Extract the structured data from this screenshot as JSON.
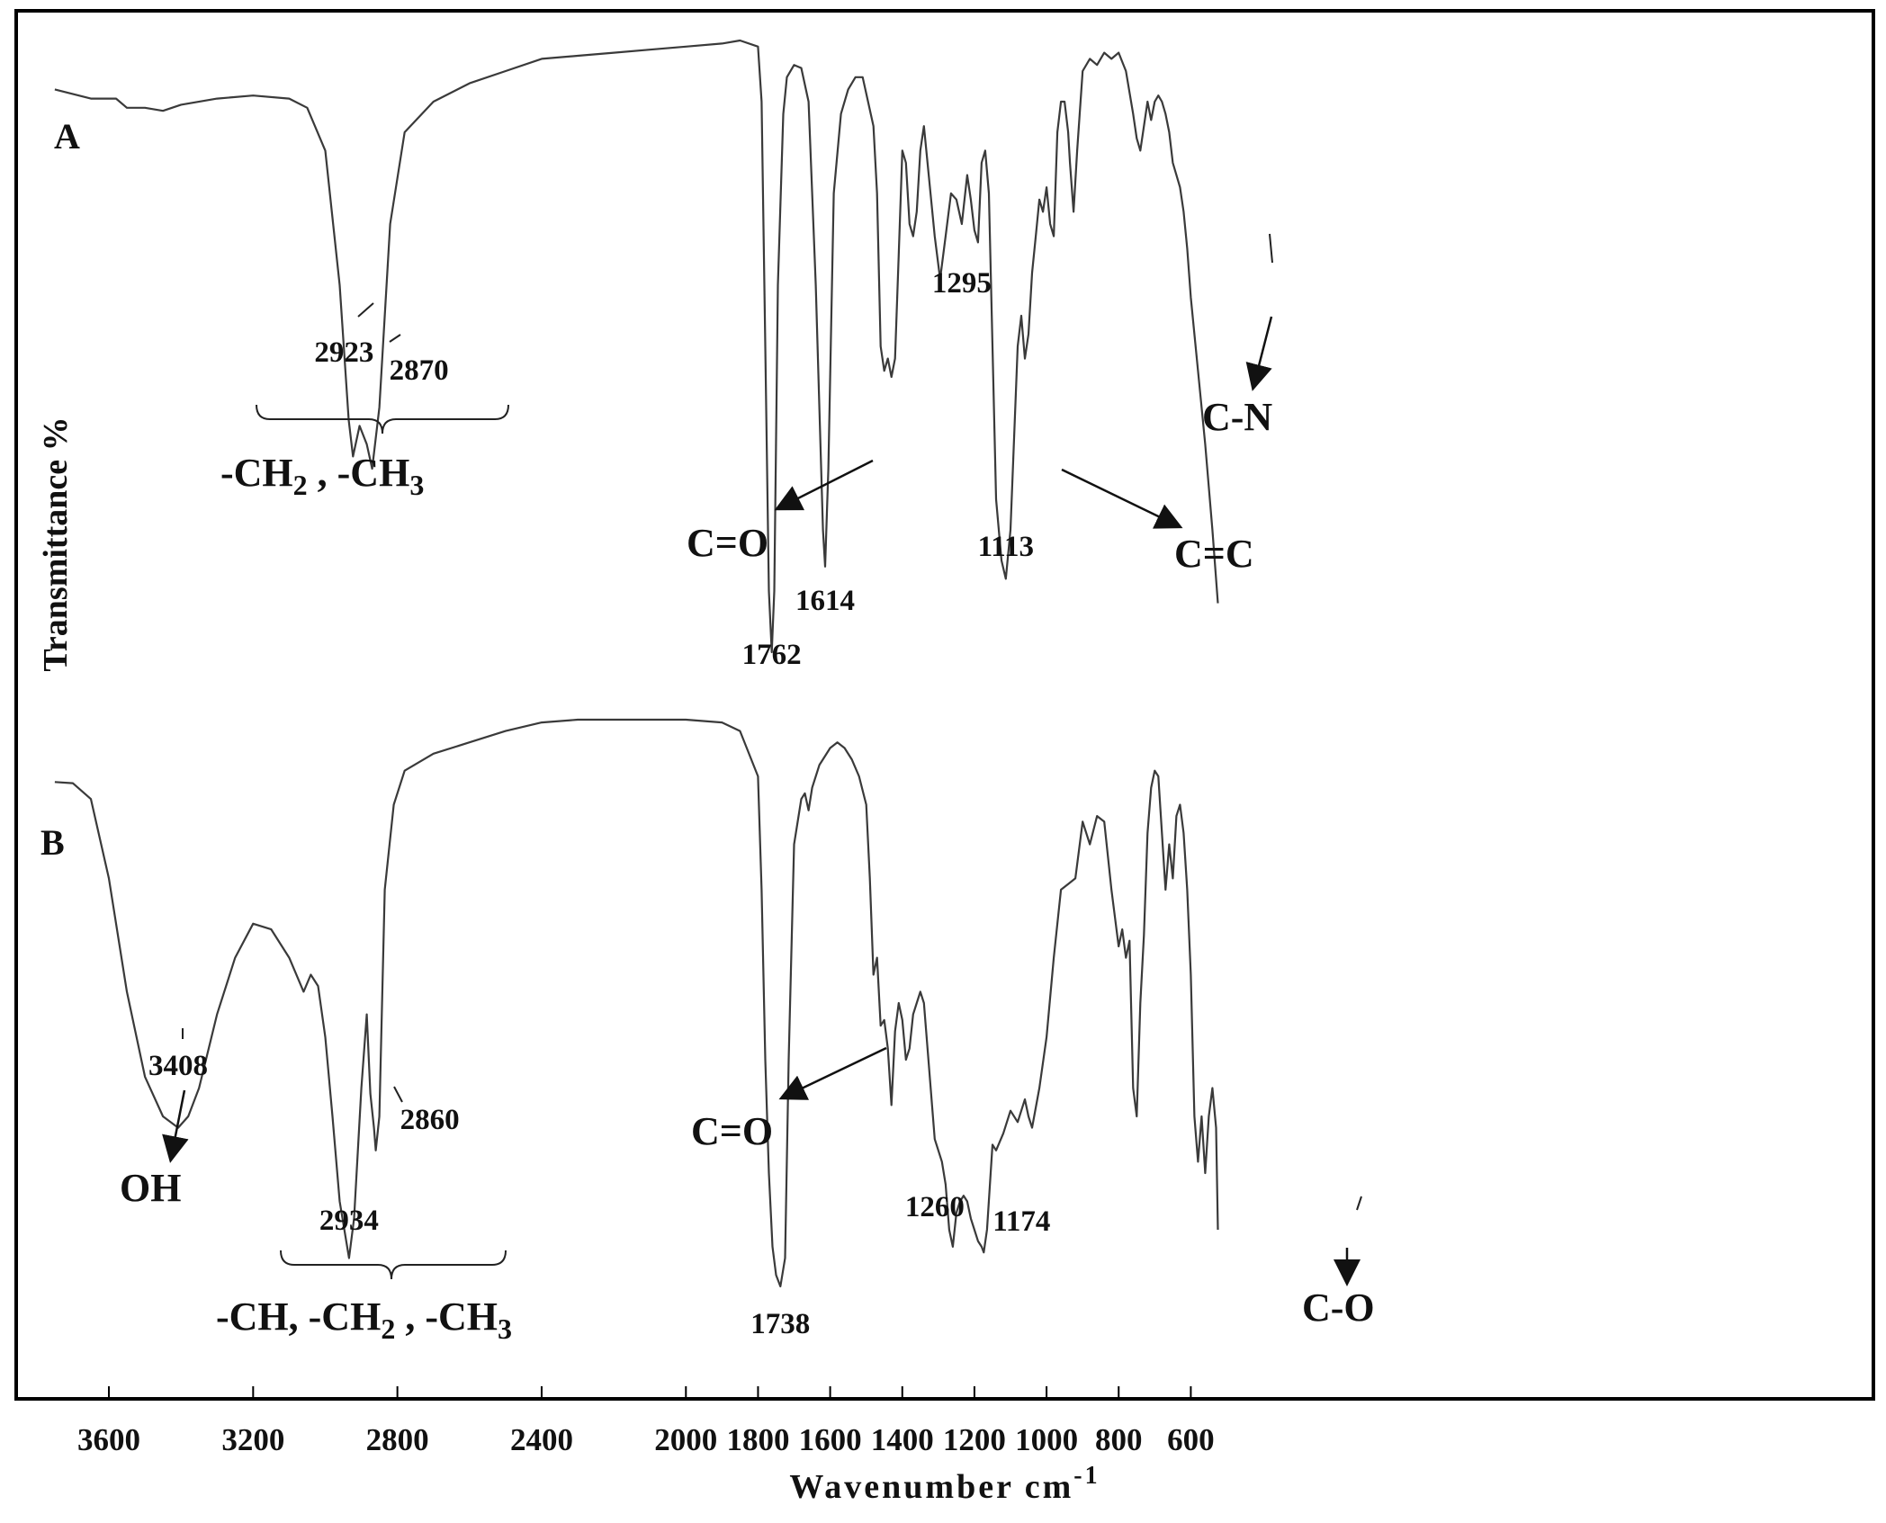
{
  "chart_data": {
    "type": "line",
    "title": "",
    "xlabel": "Wavenumber  cm",
    "xlabel_superscript": "-1",
    "ylabel": "Transmittance %",
    "xlim": [
      3750,
      520
    ],
    "x_reversed": true,
    "grid": false,
    "x_ticks": [
      3600,
      3200,
      2800,
      2400,
      2000,
      1800,
      1600,
      1400,
      1200,
      1000,
      800,
      600
    ],
    "series": [
      {
        "name": "A",
        "x": [
          3750,
          3650,
          3580,
          3550,
          3500,
          3450,
          3400,
          3300,
          3200,
          3100,
          3050,
          3000,
          2960,
          2935,
          2923,
          2905,
          2885,
          2870,
          2850,
          2820,
          2780,
          2700,
          2600,
          2500,
          2400,
          2300,
          2200,
          2100,
          2000,
          1900,
          1850,
          1800,
          1790,
          1780,
          1770,
          1762,
          1755,
          1745,
          1730,
          1720,
          1700,
          1680,
          1660,
          1640,
          1620,
          1614,
          1605,
          1590,
          1570,
          1550,
          1530,
          1510,
          1495,
          1480,
          1470,
          1460,
          1450,
          1440,
          1430,
          1420,
          1410,
          1400,
          1390,
          1380,
          1370,
          1360,
          1350,
          1340,
          1330,
          1320,
          1310,
          1295,
          1280,
          1265,
          1250,
          1235,
          1220,
          1210,
          1200,
          1190,
          1180,
          1170,
          1160,
          1150,
          1140,
          1125,
          1113,
          1100,
          1090,
          1080,
          1070,
          1060,
          1050,
          1040,
          1030,
          1020,
          1010,
          1000,
          990,
          980,
          970,
          960,
          950,
          940,
          935,
          925,
          915,
          900,
          880,
          860,
          840,
          820,
          800,
          780,
          760,
          750,
          740,
          730,
          720,
          710,
          700,
          690,
          680,
          670,
          660,
          650,
          640,
          630,
          620,
          610,
          600,
          580,
          560,
          540,
          525
        ],
        "y": [
          0.92,
          0.905,
          0.905,
          0.89,
          0.89,
          0.885,
          0.895,
          0.905,
          0.91,
          0.905,
          0.89,
          0.82,
          0.6,
          0.38,
          0.32,
          0.37,
          0.34,
          0.3,
          0.4,
          0.7,
          0.85,
          0.9,
          0.93,
          0.95,
          0.97,
          0.975,
          0.98,
          0.985,
          0.99,
          0.995,
          1.0,
          0.99,
          0.9,
          0.5,
          0.1,
          0.0,
          0.1,
          0.6,
          0.88,
          0.94,
          0.96,
          0.955,
          0.9,
          0.6,
          0.2,
          0.14,
          0.3,
          0.75,
          0.88,
          0.92,
          0.94,
          0.94,
          0.9,
          0.86,
          0.75,
          0.5,
          0.46,
          0.48,
          0.45,
          0.48,
          0.65,
          0.82,
          0.8,
          0.7,
          0.68,
          0.72,
          0.82,
          0.86,
          0.8,
          0.74,
          0.68,
          0.61,
          0.68,
          0.75,
          0.74,
          0.7,
          0.78,
          0.74,
          0.69,
          0.67,
          0.8,
          0.82,
          0.75,
          0.5,
          0.25,
          0.15,
          0.12,
          0.2,
          0.35,
          0.5,
          0.55,
          0.48,
          0.52,
          0.62,
          0.68,
          0.74,
          0.72,
          0.76,
          0.7,
          0.68,
          0.85,
          0.9,
          0.9,
          0.85,
          0.8,
          0.72,
          0.82,
          0.95,
          0.97,
          0.96,
          0.98,
          0.97,
          0.98,
          0.95,
          0.88,
          0.84,
          0.82,
          0.86,
          0.9,
          0.87,
          0.9,
          0.91,
          0.9,
          0.88,
          0.85,
          0.8,
          0.78,
          0.76,
          0.72,
          0.66,
          0.58,
          0.46,
          0.34,
          0.2,
          0.08
        ]
      },
      {
        "name": "B",
        "x": [
          3750,
          3700,
          3650,
          3600,
          3550,
          3500,
          3450,
          3408,
          3380,
          3350,
          3300,
          3250,
          3200,
          3150,
          3100,
          3060,
          3040,
          3020,
          3000,
          2980,
          2960,
          2934,
          2920,
          2900,
          2885,
          2875,
          2865,
          2860,
          2850,
          2835,
          2810,
          2780,
          2700,
          2600,
          2500,
          2400,
          2300,
          2200,
          2100,
          2000,
          1900,
          1850,
          1800,
          1790,
          1780,
          1770,
          1760,
          1750,
          1738,
          1725,
          1715,
          1700,
          1680,
          1670,
          1660,
          1650,
          1640,
          1630,
          1620,
          1600,
          1580,
          1560,
          1540,
          1520,
          1500,
          1490,
          1480,
          1470,
          1460,
          1450,
          1440,
          1430,
          1420,
          1410,
          1400,
          1390,
          1380,
          1370,
          1360,
          1350,
          1340,
          1330,
          1320,
          1310,
          1300,
          1290,
          1280,
          1270,
          1260,
          1250,
          1240,
          1230,
          1220,
          1210,
          1200,
          1190,
          1180,
          1174,
          1165,
          1150,
          1140,
          1120,
          1100,
          1080,
          1060,
          1050,
          1040,
          1020,
          1000,
          980,
          960,
          940,
          920,
          900,
          880,
          860,
          840,
          820,
          800,
          790,
          780,
          770,
          760,
          750,
          740,
          730,
          720,
          710,
          700,
          690,
          680,
          670,
          660,
          650,
          640,
          630,
          620,
          610,
          600,
          590,
          580,
          570,
          560,
          550,
          540,
          530,
          525
        ],
        "y": [
          0.89,
          0.888,
          0.86,
          0.72,
          0.52,
          0.37,
          0.3,
          0.28,
          0.3,
          0.35,
          0.48,
          0.58,
          0.64,
          0.63,
          0.58,
          0.52,
          0.55,
          0.53,
          0.44,
          0.3,
          0.15,
          0.05,
          0.12,
          0.35,
          0.48,
          0.34,
          0.28,
          0.24,
          0.3,
          0.7,
          0.85,
          0.91,
          0.94,
          0.96,
          0.98,
          0.995,
          1.0,
          1.0,
          1.0,
          1.0,
          0.995,
          0.98,
          0.9,
          0.7,
          0.4,
          0.2,
          0.07,
          0.02,
          0.0,
          0.05,
          0.4,
          0.78,
          0.86,
          0.87,
          0.84,
          0.88,
          0.9,
          0.92,
          0.93,
          0.95,
          0.96,
          0.95,
          0.93,
          0.9,
          0.85,
          0.72,
          0.55,
          0.58,
          0.46,
          0.47,
          0.42,
          0.32,
          0.45,
          0.5,
          0.47,
          0.4,
          0.42,
          0.48,
          0.5,
          0.52,
          0.5,
          0.42,
          0.34,
          0.26,
          0.24,
          0.22,
          0.18,
          0.1,
          0.07,
          0.13,
          0.15,
          0.16,
          0.15,
          0.12,
          0.1,
          0.08,
          0.07,
          0.06,
          0.1,
          0.25,
          0.24,
          0.27,
          0.31,
          0.29,
          0.33,
          0.3,
          0.28,
          0.35,
          0.44,
          0.58,
          0.7,
          0.71,
          0.72,
          0.82,
          0.78,
          0.83,
          0.82,
          0.7,
          0.6,
          0.63,
          0.58,
          0.61,
          0.35,
          0.3,
          0.5,
          0.62,
          0.8,
          0.88,
          0.91,
          0.9,
          0.8,
          0.7,
          0.78,
          0.72,
          0.83,
          0.85,
          0.8,
          0.7,
          0.55,
          0.3,
          0.22,
          0.3,
          0.2,
          0.3,
          0.35,
          0.28,
          0.1
        ]
      }
    ],
    "annotations": {
      "panel_labels": [
        "A",
        "B"
      ],
      "peak_labels": [
        {
          "text": "2923",
          "series": "A",
          "x": 2923
        },
        {
          "text": "2870",
          "series": "A",
          "x": 2870
        },
        {
          "text": "1762",
          "series": "A",
          "x": 1762
        },
        {
          "text": "1614",
          "series": "A",
          "x": 1614
        },
        {
          "text": "1295",
          "series": "A",
          "x": 1295
        },
        {
          "text": "1113",
          "series": "A",
          "x": 1113
        },
        {
          "text": "3408",
          "series": "B",
          "x": 3408
        },
        {
          "text": "2934",
          "series": "B",
          "x": 2934
        },
        {
          "text": "2860",
          "series": "B",
          "x": 2860
        },
        {
          "text": "1738",
          "series": "B",
          "x": 1738
        },
        {
          "text": "1260",
          "series": "B",
          "x": 1260
        },
        {
          "text": "1174",
          "series": "B",
          "x": 1174
        }
      ],
      "group_labels": {
        "a_ch": {
          "main": "-CH",
          "sub": "2",
          "mid": " , -CH",
          "sub2": "3"
        },
        "a_co": "C=O",
        "a_cc": "C=C",
        "a_cn": "C-N",
        "b_oh": "OH",
        "b_co": "C=O",
        "b_ch": {
          "main": "-CH, -CH",
          "sub": "2",
          "mid": " , -CH",
          "sub2": "3"
        },
        "b_c_o": "C-O"
      }
    }
  }
}
